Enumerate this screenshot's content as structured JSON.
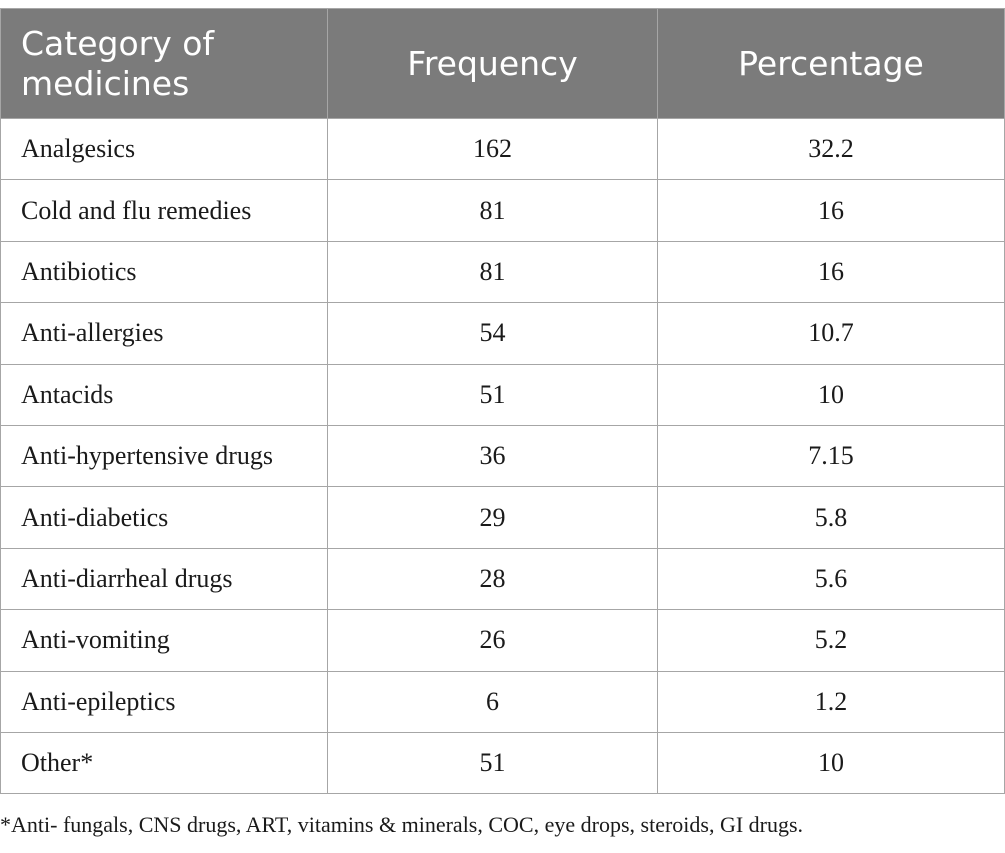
{
  "table": {
    "headers": [
      "Category of medicines",
      "Frequency",
      "Percentage"
    ],
    "rows": [
      [
        "Analgesics",
        "162",
        "32.2"
      ],
      [
        "Cold and flu remedies",
        "81",
        "16"
      ],
      [
        "Antibiotics",
        "81",
        "16"
      ],
      [
        "Anti-allergies",
        "54",
        "10.7"
      ],
      [
        "Antacids",
        "51",
        "10"
      ],
      [
        "Anti-hypertensive drugs",
        "36",
        "7.15"
      ],
      [
        "Anti-diabetics",
        "29",
        "5.8"
      ],
      [
        "Anti-diarrheal drugs",
        "28",
        "5.6"
      ],
      [
        "Anti-vomiting",
        "26",
        "5.2"
      ],
      [
        "Anti-epileptics",
        "6",
        "1.2"
      ],
      [
        "Other*",
        "51",
        "10"
      ]
    ]
  },
  "footnote": "*Anti- fungals, CNS drugs, ART, vitamins & minerals, COC, eye drops, steroids, GI drugs.",
  "colors": {
    "header_bg": "#7b7b7b",
    "header_text": "#ffffff",
    "border": "#a6a6a6"
  }
}
